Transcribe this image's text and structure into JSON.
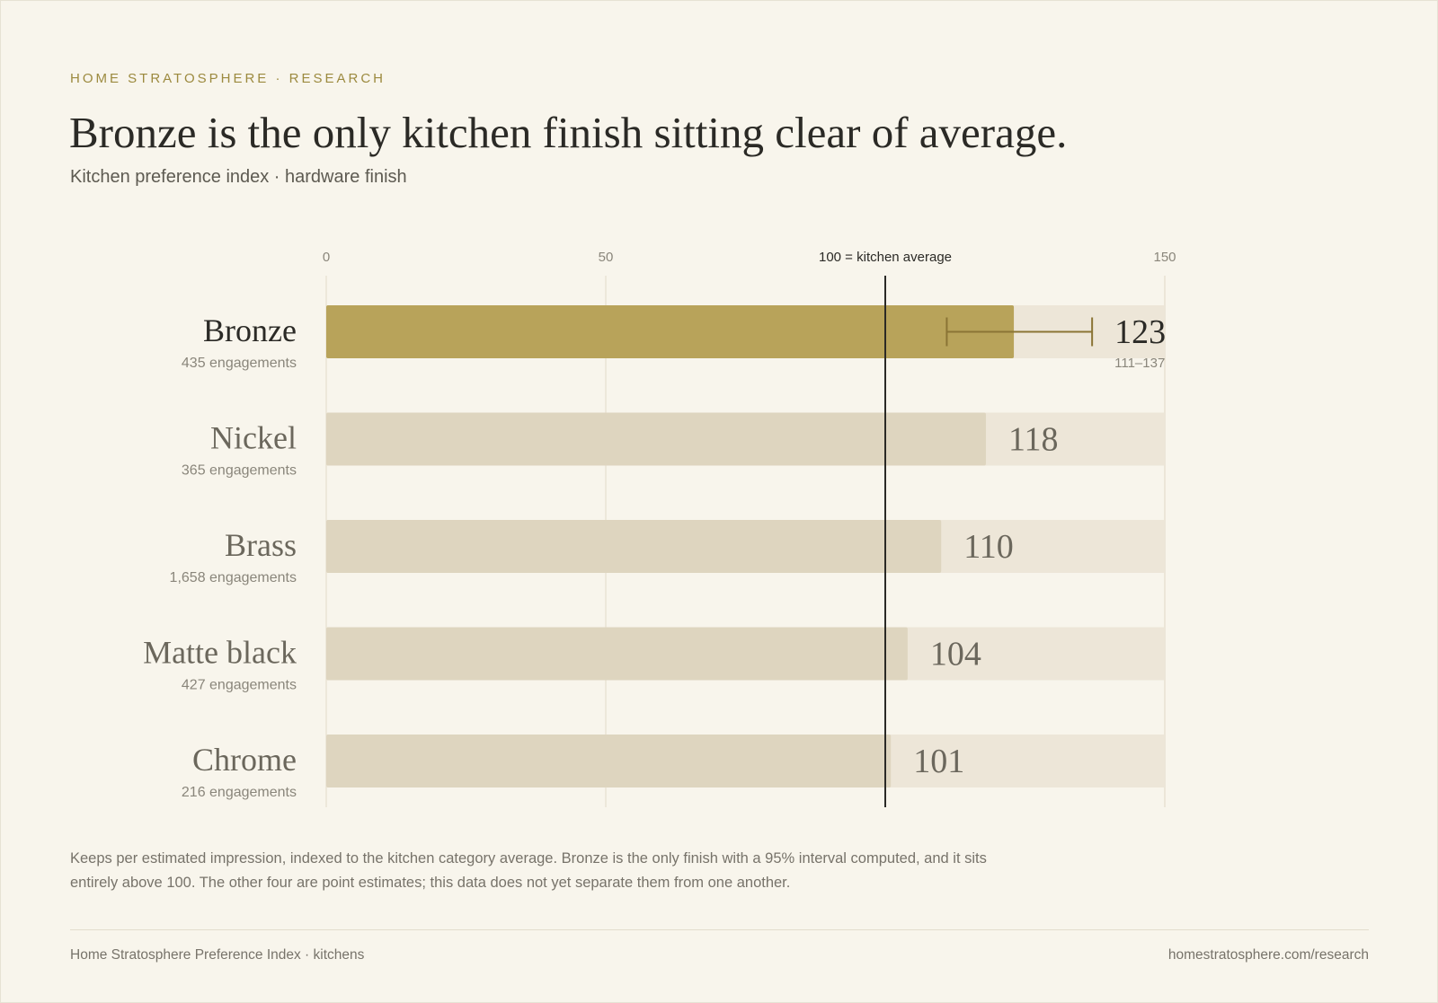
{
  "header": {
    "eyebrow": "HOME STRATOSPHERE · RESEARCH",
    "title": "Bronze is the only kitchen finish sitting clear of average.",
    "subtitle": "Kitchen preference index · hardware finish"
  },
  "chart_data": {
    "type": "bar",
    "orientation": "horizontal",
    "xlim": [
      0,
      150
    ],
    "x_ticks": [
      0,
      50,
      150
    ],
    "reference_line": {
      "value": 100,
      "label": "100 = kitchen average"
    },
    "grid": true,
    "categories": [
      "Bronze",
      "Nickel",
      "Brass",
      "Matte black",
      "Chrome"
    ],
    "values": [
      123,
      118,
      110,
      104,
      101
    ],
    "engagements": [
      "435 engagements",
      "365 engagements",
      "1,658 engagements",
      "427 engagements",
      "216 engagements"
    ],
    "highlight": "Bronze",
    "interval": {
      "category": "Bronze",
      "low": 111,
      "high": 137,
      "label": "111–137"
    },
    "colors": {
      "highlight_bar": "#b8a35a",
      "bar": "#ded5bf",
      "track": "#ede6d8",
      "error_bar": "#8a7435",
      "reference_line": "#2b2a26",
      "grid": "#e6dfcf"
    }
  },
  "note": "Keeps per estimated impression, indexed to the kitchen category average. Bronze is the only finish with a 95% interval computed, and it sits entirely above 100. The other four are point estimates; this data does not yet separate them from one another.",
  "footer": {
    "left": "Home Stratosphere Preference Index · kitchens",
    "right": "homestratosphere.com/research"
  }
}
